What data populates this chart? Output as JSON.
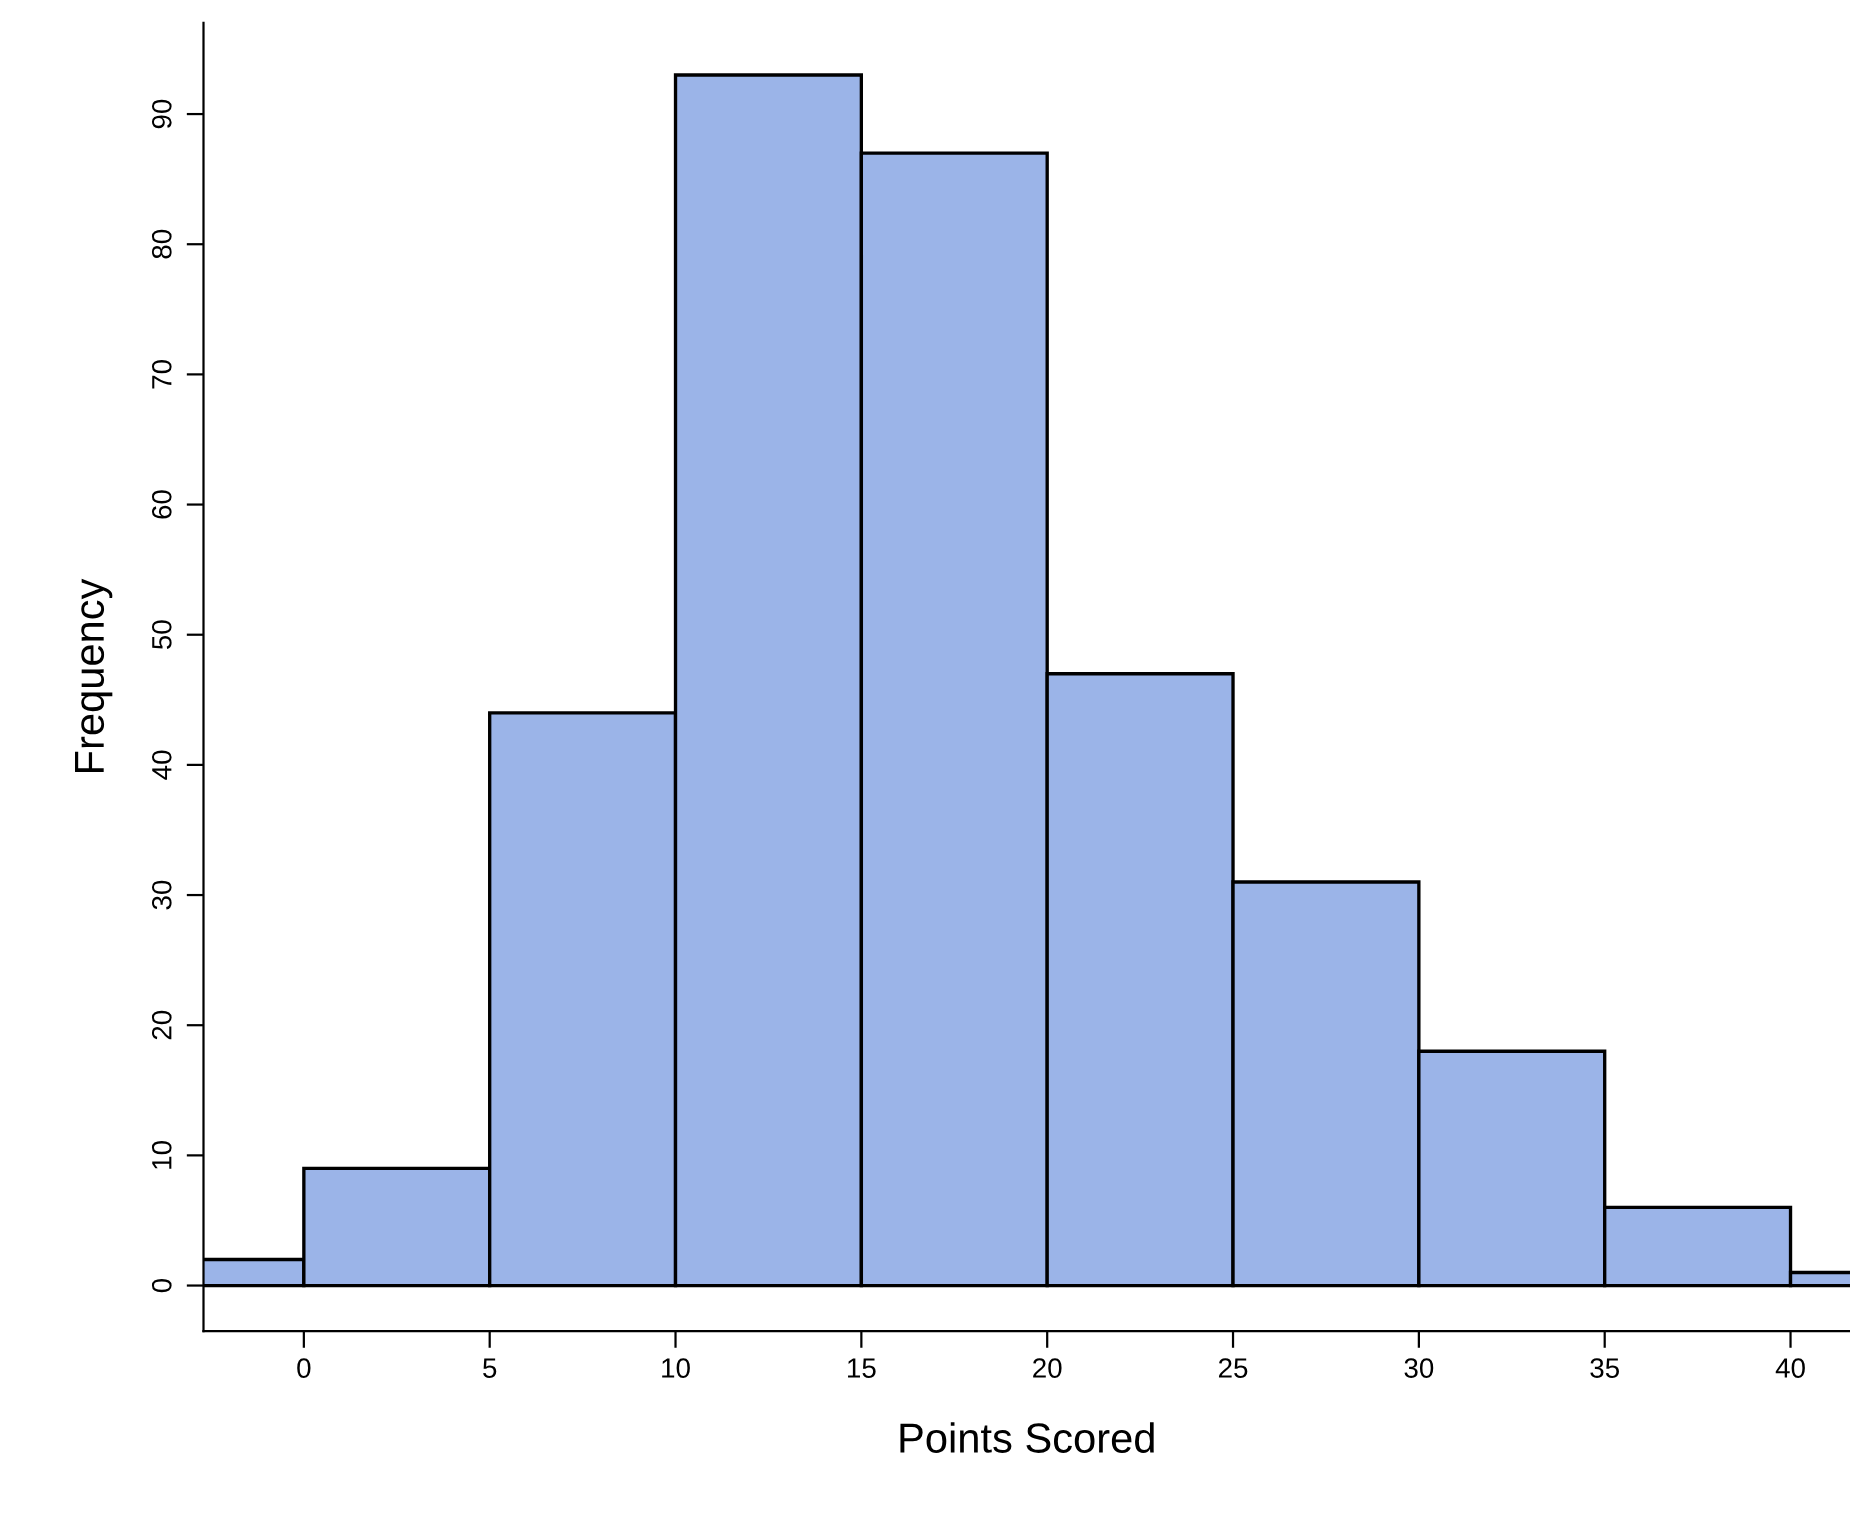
{
  "chart_data": {
    "type": "histogram",
    "xlabel": "Points Scored",
    "ylabel": "Frequency",
    "bins": [
      -5,
      0,
      5,
      10,
      15,
      20,
      25,
      30,
      35,
      40,
      45
    ],
    "values": [
      2,
      9,
      44,
      93,
      87,
      47,
      31,
      18,
      6,
      1
    ],
    "color": "#9bb4e8",
    "xlim": [
      -2.7,
      41.6
    ],
    "ylim": [
      -3.5,
      97
    ],
    "xticks": [
      0,
      5,
      10,
      15,
      20,
      25,
      30,
      35,
      40
    ],
    "yticks": [
      0,
      10,
      20,
      30,
      40,
      50,
      60,
      70,
      80,
      90
    ],
    "grid": false
  }
}
